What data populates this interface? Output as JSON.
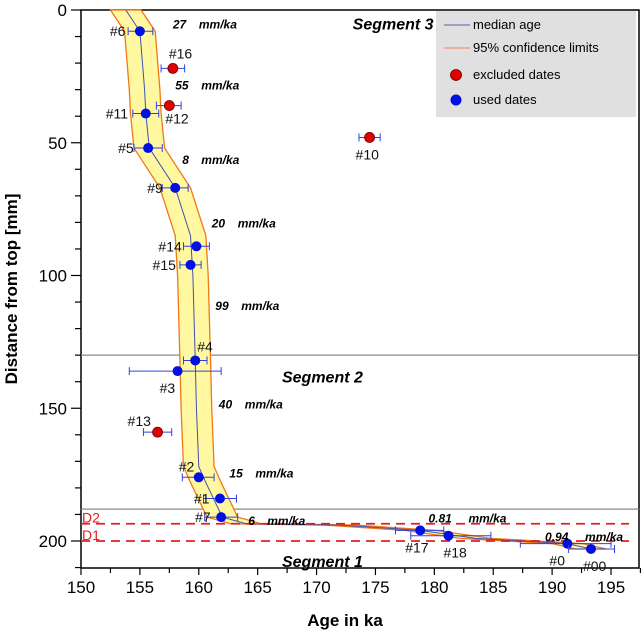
{
  "chart_data": {
    "type": "scatter",
    "xlabel": "Age in ka",
    "ylabel": "Distance from top [mm]",
    "xlim": [
      150,
      197.5
    ],
    "ylim": [
      0,
      210
    ],
    "y_inverted": true,
    "xticks": [
      150,
      155,
      160,
      165,
      170,
      175,
      180,
      185,
      190,
      195
    ],
    "yticks": [
      0,
      50,
      100,
      150,
      200
    ],
    "legend": {
      "placement": "top-right",
      "entries": [
        {
          "label": "median age",
          "type": "line",
          "color": "#5560b0"
        },
        {
          "label": "95% confidence limits",
          "type": "line",
          "color": "#f08060"
        },
        {
          "label": "excluded dates",
          "type": "marker",
          "color": "#e00000"
        },
        {
          "label": "used dates",
          "type": "marker",
          "color": "#0010e0"
        }
      ]
    },
    "points": [
      {
        "label": "#6",
        "age": 155.0,
        "depth": 8,
        "err": [
          154.0,
          156.1
        ],
        "used": true
      },
      {
        "label": "#16",
        "age": 157.8,
        "depth": 22,
        "err": [
          156.8,
          158.8
        ],
        "used": false
      },
      {
        "label": "#12",
        "age": 157.5,
        "depth": 36,
        "err": [
          156.4,
          158.5
        ],
        "used": false
      },
      {
        "label": "#11",
        "age": 155.5,
        "depth": 39,
        "err": [
          154.4,
          156.6
        ],
        "used": true
      },
      {
        "label": "#5",
        "age": 155.7,
        "depth": 52,
        "err": [
          154.5,
          156.9
        ],
        "used": true
      },
      {
        "label": "#9",
        "age": 158.0,
        "depth": 67,
        "err": [
          156.9,
          159.1
        ],
        "used": true
      },
      {
        "label": "#14",
        "age": 159.8,
        "depth": 89,
        "err": [
          158.7,
          160.9
        ],
        "used": true
      },
      {
        "label": "#15",
        "age": 159.3,
        "depth": 96,
        "err": [
          158.4,
          160.2
        ],
        "used": true
      },
      {
        "label": "#10",
        "age": 174.5,
        "depth": 48,
        "err": [
          173.6,
          175.4
        ],
        "used": false
      },
      {
        "label": "#4",
        "age": 159.7,
        "depth": 132,
        "err": [
          158.7,
          160.7
        ],
        "used": true
      },
      {
        "label": "#3",
        "age": 158.2,
        "depth": 136,
        "err": [
          154.1,
          161.9
        ],
        "used": true
      },
      {
        "label": "#13",
        "age": 156.5,
        "depth": 159,
        "err": [
          155.3,
          157.7
        ],
        "used": false
      },
      {
        "label": "#2",
        "age": 160.0,
        "depth": 176,
        "err": [
          158.6,
          161.3
        ],
        "used": true
      },
      {
        "label": "#1",
        "age": 161.8,
        "depth": 184,
        "err": [
          160.4,
          163.2
        ],
        "used": true
      },
      {
        "label": "#7",
        "age": 161.9,
        "depth": 191,
        "err": [
          160.5,
          163.3
        ],
        "used": true
      },
      {
        "label": "#17",
        "age": 178.8,
        "depth": 196,
        "err": [
          176.7,
          180.8
        ],
        "used": true
      },
      {
        "label": "#18",
        "age": 181.2,
        "depth": 198,
        "err": [
          178.0,
          184.8
        ],
        "used": true
      },
      {
        "label": "#0",
        "age": 191.3,
        "depth": 201,
        "err": [
          187.3,
          195.0
        ],
        "used": true
      },
      {
        "label": "#00",
        "age": 193.3,
        "depth": 203,
        "err": [
          191.4,
          195.3
        ],
        "used": true
      }
    ],
    "median_curve": [
      [
        153.8,
        0
      ],
      [
        155,
        8
      ],
      [
        155.4,
        30
      ],
      [
        155.5,
        39
      ],
      [
        155.8,
        52
      ],
      [
        158,
        67
      ],
      [
        159.3,
        85
      ],
      [
        159.5,
        100
      ],
      [
        159.7,
        132
      ],
      [
        159.8,
        150
      ],
      [
        160,
        172
      ],
      [
        160.6,
        178
      ],
      [
        162,
        191
      ],
      [
        164,
        193.5
      ],
      [
        172,
        194
      ],
      [
        178.8,
        196
      ],
      [
        183.5,
        199
      ],
      [
        191.3,
        201
      ],
      [
        193.3,
        203
      ]
    ],
    "confidence_halfwidth_ka": 1.3,
    "rate_labels": [
      {
        "value": "27",
        "unit": "mm/ka",
        "age": 157.8,
        "depth": 7
      },
      {
        "value": "55",
        "unit": "mm/ka",
        "age": 158.0,
        "depth": 30
      },
      {
        "value": "8",
        "unit": "mm/ka",
        "age": 158.6,
        "depth": 58
      },
      {
        "value": "20",
        "unit": "mm/ka",
        "age": 161.1,
        "depth": 82
      },
      {
        "value": "99",
        "unit": "mm/ka",
        "age": 161.4,
        "depth": 113
      },
      {
        "value": "40",
        "unit": "mm/ka",
        "age": 161.7,
        "depth": 150
      },
      {
        "value": "15",
        "unit": "mm/ka",
        "age": 162.6,
        "depth": 176
      },
      {
        "value": "6",
        "unit": "mm/ka",
        "age": 164.2,
        "depth": 194
      },
      {
        "value": "0.81",
        "unit": "mm/ka",
        "age": 179.5,
        "depth": 193
      },
      {
        "value": "0.94",
        "unit": "mm/ka",
        "age": 189.4,
        "depth": 200
      }
    ],
    "segment_boundaries": [
      130,
      188
    ],
    "segment_labels": [
      {
        "label": "Segment 3",
        "age": 176.5,
        "depth": 5
      },
      {
        "label": "Segment 2",
        "age": 170.5,
        "depth": 138
      },
      {
        "label": "Segment 1",
        "age": 170.5,
        "depth": 207.5
      }
    ],
    "dashed_lines": [
      {
        "label": "D2",
        "depth": 193.5,
        "color": "#e02020"
      },
      {
        "label": "D1",
        "depth": 200,
        "color": "#e02020"
      }
    ]
  }
}
